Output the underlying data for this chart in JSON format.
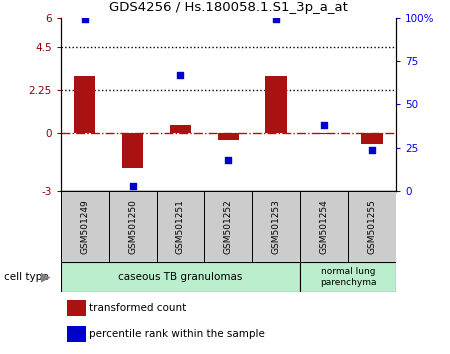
{
  "title": "GDS4256 / Hs.180058.1.S1_3p_a_at",
  "samples": [
    "GSM501249",
    "GSM501250",
    "GSM501251",
    "GSM501252",
    "GSM501253",
    "GSM501254",
    "GSM501255"
  ],
  "transformed_count": [
    3.0,
    -1.8,
    0.45,
    -0.35,
    3.0,
    -0.05,
    -0.55
  ],
  "percentile_rank": [
    99,
    3,
    67,
    18,
    99,
    38,
    24
  ],
  "ylim_left": [
    -3,
    6
  ],
  "ylim_right": [
    0,
    100
  ],
  "yticks_left": [
    -3,
    0,
    2.25,
    4.5,
    6
  ],
  "yticks_right": [
    0,
    25,
    50,
    75,
    100
  ],
  "ytick_labels_left": [
    "-3",
    "0",
    "2.25",
    "4.5",
    "6"
  ],
  "ytick_labels_right": [
    "0",
    "25",
    "50",
    "75",
    "100%"
  ],
  "hlines": [
    4.5,
    2.25
  ],
  "bar_color": "#AA1111",
  "scatter_color": "#0000CC",
  "group1_label": "caseous TB granulomas",
  "group1_color": "#BBEECC",
  "group2_label": "normal lung\nparenchyma",
  "group2_color": "#BBEECC",
  "legend_red_label": "transformed count",
  "legend_blue_label": "percentile rank within the sample",
  "cell_type_label": "cell type",
  "bar_width": 0.45
}
